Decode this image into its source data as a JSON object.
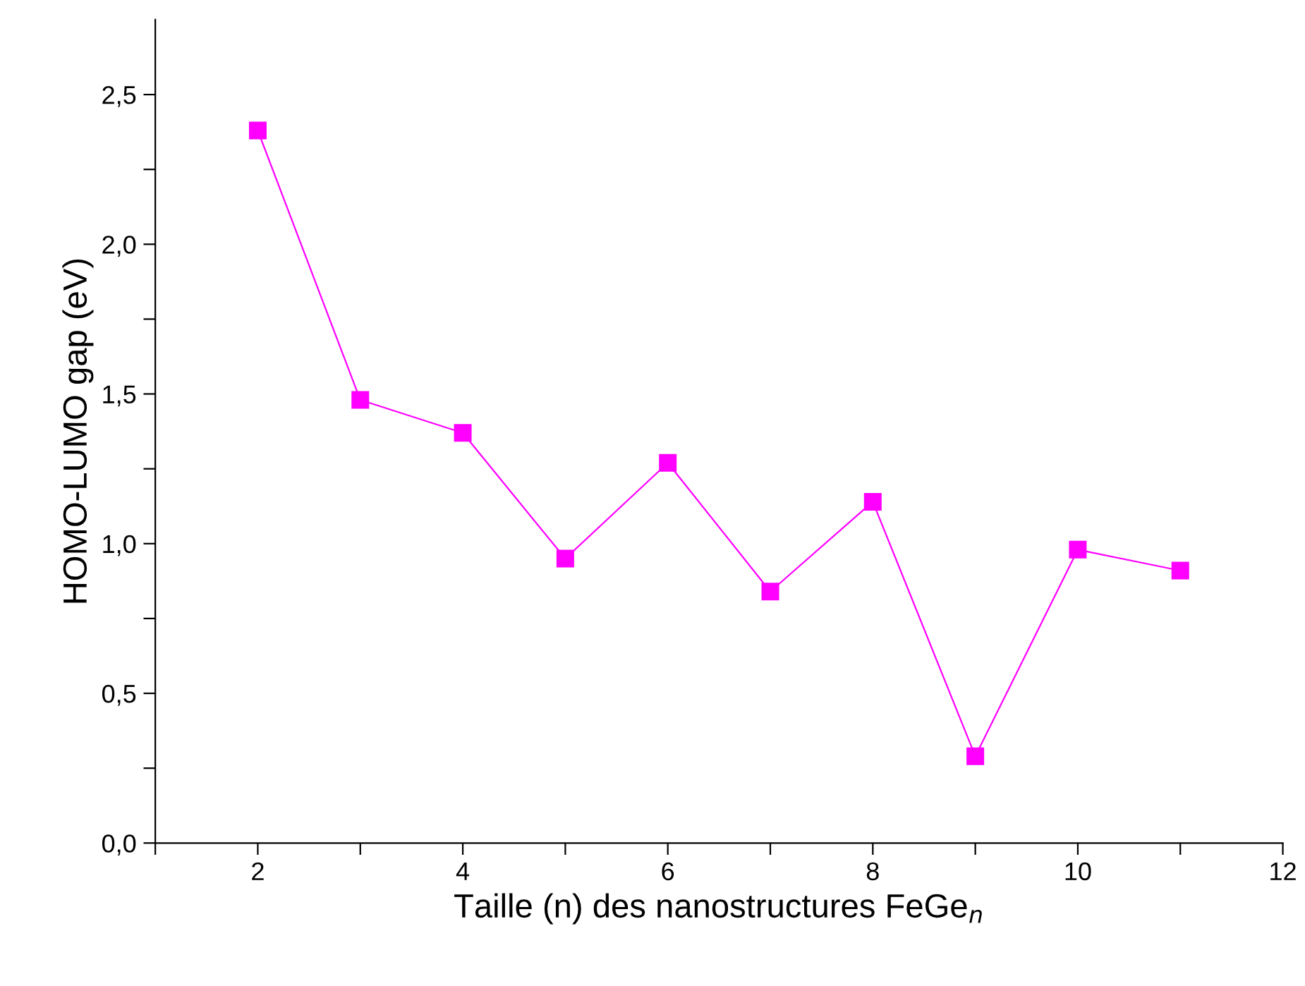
{
  "chart_data": {
    "type": "line",
    "xlabel": "Taille (n) des nanostructures FeGe$_{n}$",
    "ylabel": "HOMO-LUMO gap (eV)",
    "x": [
      2,
      3,
      4,
      5,
      6,
      7,
      8,
      9,
      10,
      11
    ],
    "series": [
      {
        "color": "#ff00ff",
        "values": [
          2.38,
          1.48,
          1.37,
          0.95,
          1.27,
          0.84,
          1.14,
          0.29,
          0.98,
          0.91
        ]
      }
    ],
    "marker": "square",
    "line_style": "solid",
    "grid": false,
    "legend": false,
    "xlim": [
      1,
      12
    ],
    "ylim": [
      0,
      2.75
    ],
    "xticks": [
      {
        "value": 1,
        "label": null
      },
      2,
      {
        "value": 3,
        "label": null
      },
      4,
      {
        "value": 5,
        "label": null
      },
      6,
      {
        "value": 7,
        "label": null
      },
      8,
      {
        "value": 9,
        "label": null
      },
      10,
      {
        "value": 11,
        "label": null
      },
      12
    ],
    "yticks": [
      {
        "value": 0,
        "label": "0,0"
      },
      {
        "value": 0.25,
        "label": null
      },
      {
        "value": 0.5,
        "label": "0,5"
      },
      {
        "value": 0.75,
        "label": null
      },
      {
        "value": 1.0,
        "label": "1,0"
      },
      {
        "value": 1.25,
        "label": null
      },
      {
        "value": 1.5,
        "label": "1,5"
      },
      {
        "value": 1.75,
        "label": null
      },
      {
        "value": 2.0,
        "label": "2,0"
      },
      {
        "value": 2.25,
        "label": null
      },
      {
        "value": 2.5,
        "label": "2,5"
      }
    ]
  }
}
